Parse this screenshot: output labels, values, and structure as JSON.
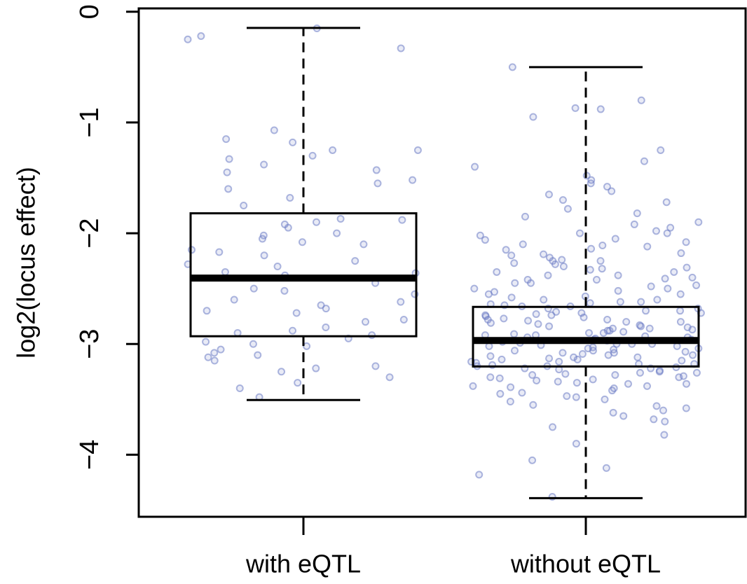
{
  "chart_data": {
    "type": "box",
    "ylabel": "log2(locus effect)",
    "categories": [
      "with eQTL",
      "without eQTL"
    ],
    "boxes": [
      {
        "whisker_low": -3.506,
        "q1": -2.93,
        "median": -2.405,
        "q3": -1.82,
        "whisker_high": -0.146
      },
      {
        "whisker_low": -4.392,
        "q1": -3.203,
        "median": -2.968,
        "q3": -2.665,
        "whisker_high": -0.5
      }
    ],
    "points": [
      [
        -0.25,
        -0.33,
        -0.22,
        -0.15,
        -1.07,
        -1.18,
        -1.25,
        -1.15,
        -1.38,
        -1.3,
        -1.52,
        -1.55,
        -1.33,
        -1.25,
        -1.43,
        -1.68,
        -1.88,
        -1.95,
        -2.0,
        -2.05,
        -2.1,
        -1.9,
        -1.87,
        -1.92,
        -2.17,
        -2.2,
        -2.08,
        -2.28,
        -2.35,
        -2.38,
        -2.36,
        -2.25,
        -2.5,
        -2.52,
        -2.6,
        -2.65,
        -2.55,
        -2.62,
        -2.72,
        -2.8,
        -2.85,
        -2.78,
        -2.88,
        -2.9,
        -2.95,
        -2.92,
        -3.0,
        -3.02,
        -3.05,
        -3.08,
        -3.1,
        -3.15,
        -3.2,
        -3.22,
        -3.25,
        -3.3,
        -3.35,
        -3.4,
        -3.48,
        -1.6,
        -1.45,
        -2.7,
        -2.45,
        -2.15,
        -3.12,
        -2.98,
        -2.68,
        -1.75,
        -2.3,
        -2.02
      ],
      [
        -0.5,
        -0.8,
        -0.88,
        -0.87,
        -0.95,
        -1.25,
        -1.35,
        -1.48,
        -1.52,
        -1.55,
        -1.4,
        -1.58,
        -1.62,
        -1.7,
        -1.72,
        -1.65,
        -1.78,
        -1.85,
        -1.9,
        -1.92,
        -1.95,
        -2.0,
        -2.02,
        -2.05,
        -2.08,
        -2.1,
        -2.12,
        -2.15,
        -2.18,
        -2.2,
        -2.22,
        -2.25,
        -2.28,
        -2.3,
        -2.32,
        -2.35,
        -2.38,
        -2.4,
        -2.42,
        -2.45,
        -2.48,
        -2.5,
        -2.52,
        -2.55,
        -2.57,
        -2.6,
        -2.62,
        -2.64,
        -2.66,
        -2.68,
        -2.7,
        -2.72,
        -2.74,
        -2.76,
        -2.78,
        -2.8,
        -2.82,
        -2.84,
        -2.86,
        -2.88,
        -2.9,
        -2.92,
        -2.94,
        -2.96,
        -2.98,
        -3.0,
        -3.02,
        -3.04,
        -3.06,
        -3.08,
        -3.1,
        -3.12,
        -3.14,
        -3.16,
        -3.18,
        -3.2,
        -3.22,
        -3.24,
        -3.26,
        -3.28,
        -3.3,
        -3.32,
        -3.34,
        -3.36,
        -3.38,
        -3.4,
        -3.42,
        -3.45,
        -3.48,
        -3.5,
        -3.52,
        -3.55,
        -3.58,
        -3.62,
        -3.65,
        -3.7,
        -3.75,
        -3.82,
        -3.9,
        -4.05,
        -4.12,
        -4.18,
        -4.38,
        -2.35,
        -2.45,
        -2.55,
        -2.62,
        -2.7,
        -2.75,
        -2.8,
        -2.85,
        -2.9,
        -2.95,
        -3.0,
        -3.05,
        -3.1,
        -3.15,
        -3.2,
        -3.25,
        -3.3,
        -2.6,
        -2.65,
        -2.72,
        -2.78,
        -2.83,
        -2.88,
        -2.93,
        -2.97,
        -3.01,
        -3.06,
        -3.11,
        -3.16,
        -3.21,
        -3.27,
        -3.33,
        -3.38,
        -2.5,
        -2.42,
        -2.33,
        -2.25,
        -2.68,
        -2.74,
        -2.81,
        -2.87,
        -2.92,
        -2.99,
        -3.03,
        -3.09,
        -3.13,
        -3.19,
        -3.23,
        -3.29,
        -3.35,
        -3.44,
        -2.58,
        -2.47,
        -2.38,
        -2.27,
        -2.14,
        -2.06,
        -2.63,
        -2.71,
        -2.77,
        -2.86,
        -2.91,
        -2.96,
        -3.02,
        -3.07,
        -3.14,
        -3.18,
        -3.26,
        -3.31,
        -3.39,
        -3.47,
        -3.56,
        -2.53,
        -2.41,
        -2.31,
        -2.19,
        -2.0,
        -2.66,
        -2.73,
        -2.79,
        -2.84,
        -2.89,
        -2.94,
        -3.0,
        -3.04,
        -3.08,
        -3.12,
        -3.17,
        -3.22,
        -3.28,
        -3.36,
        -3.6,
        -3.68,
        -1.82,
        -1.98,
        -2.11,
        -2.24
      ]
    ],
    "ylim": [
      -4.56,
      0.03
    ],
    "yticks": [
      0,
      {
        "value": -1,
        "label": "−1"
      },
      {
        "value": -2,
        "label": "−2"
      },
      {
        "value": -3,
        "label": "−3"
      },
      {
        "value": -4,
        "label": "−4"
      }
    ],
    "box_color": "#000000",
    "point_color": "#6b7cc4"
  }
}
